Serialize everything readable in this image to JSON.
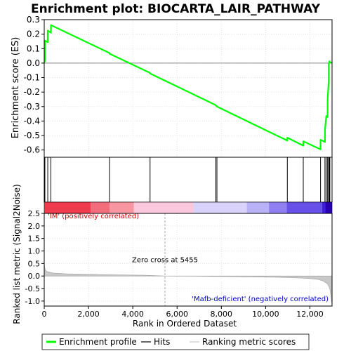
{
  "chart_data": {
    "title": "Enrichment plot: BIOCARTA_LAIR_PATHWAY",
    "panels": [
      {
        "type": "line",
        "name": "enrichment_profile",
        "ylabel": "Enrichment score (ES)",
        "xlim": [
          0,
          13000
        ],
        "ylim": [
          -0.65,
          0.3
        ],
        "yticks": [
          0.3,
          0.2,
          0.1,
          0.0,
          -0.1,
          -0.2,
          -0.3,
          -0.4,
          -0.5,
          -0.6
        ],
        "ytick_labels": [
          "0.3",
          "0.2",
          "0.1",
          "0.0",
          "-0.1",
          "-0.2",
          "-0.3",
          "-0.4",
          "-0.5",
          "-0.6"
        ],
        "grid": true,
        "color": "#00ff00",
        "x": [
          0,
          30,
          30,
          160,
          160,
          300,
          300,
          2950,
          2950,
          4780,
          4780,
          7750,
          7750,
          7800,
          7800,
          10980,
          10980,
          11700,
          11700,
          12480,
          12480,
          12680,
          12680,
          12740,
          12740,
          12800,
          12800,
          12850,
          12850,
          12880,
          12880,
          12900,
          12900,
          13000
        ],
        "y": [
          0.0,
          0.02,
          0.155,
          0.145,
          0.225,
          0.21,
          0.262,
          0.07,
          0.065,
          -0.068,
          -0.072,
          -0.29,
          -0.293,
          -0.297,
          -0.3,
          -0.535,
          -0.515,
          -0.57,
          -0.54,
          -0.595,
          -0.53,
          -0.545,
          -0.46,
          -0.365,
          -0.37,
          -0.372,
          -0.25,
          -0.125,
          -0.005,
          0.008,
          0.012,
          0.008,
          0.005,
          0.005
        ]
      },
      {
        "type": "hits",
        "name": "hits",
        "positions": [
          30,
          160,
          300,
          2950,
          4780,
          7750,
          7800,
          10980,
          11700,
          12480,
          12680,
          12740,
          12800,
          12850,
          12880,
          12900
        ]
      },
      {
        "type": "heatmap",
        "name": "ranked_list_colorbar",
        "xlim": [
          0,
          13000
        ],
        "segments": [
          {
            "from": 0,
            "to": 2100,
            "color": "#ef3b4d"
          },
          {
            "from": 2100,
            "to": 2950,
            "color": "#f36e7d"
          },
          {
            "from": 2950,
            "to": 4050,
            "color": "#f795a1"
          },
          {
            "from": 4050,
            "to": 6750,
            "color": "#fac8dc"
          },
          {
            "from": 6750,
            "to": 9150,
            "color": "#d9d2fb"
          },
          {
            "from": 9150,
            "to": 10150,
            "color": "#bab2f7"
          },
          {
            "from": 10150,
            "to": 10950,
            "color": "#8f7ff1"
          },
          {
            "from": 10950,
            "to": 12550,
            "color": "#6650e8"
          },
          {
            "from": 12550,
            "to": 12700,
            "color": "#3d1fd9"
          },
          {
            "from": 12700,
            "to": 13000,
            "color": "#2800b0"
          }
        ]
      },
      {
        "type": "area",
        "name": "ranked_list_metric",
        "ylabel": "Ranked list metric (Signal2Noise)",
        "xlabel": "Rank in Ordered Dataset",
        "xlim": [
          0,
          13000
        ],
        "ylim": [
          -1.2,
          2.5
        ],
        "yticks": [
          2.5,
          2.0,
          1.5,
          1.0,
          0.5,
          0.0,
          -0.5,
          -1.0
        ],
        "ytick_labels": [
          "2.5",
          "2.0",
          "1.5",
          "1.0",
          "0.5",
          "0.0",
          "-0.5",
          "-1.0"
        ],
        "xticks": [
          0,
          2000,
          4000,
          6000,
          8000,
          10000,
          12000
        ],
        "xtick_labels": [
          "0",
          "2,000",
          "4,000",
          "6,000",
          "8,000",
          "10,000",
          "12,000"
        ],
        "grid": true,
        "color": "#c8c8c8",
        "x": [
          0,
          20,
          60,
          150,
          400,
          1000,
          2000,
          3000,
          4500,
          5455,
          7000,
          9000,
          10500,
          11500,
          12000,
          12400,
          12600,
          12800,
          12900,
          12950,
          13000
        ],
        "y": [
          0.55,
          0.35,
          0.22,
          0.17,
          0.12,
          0.09,
          0.07,
          0.05,
          0.03,
          0.0,
          -0.01,
          -0.03,
          -0.05,
          -0.08,
          -0.1,
          -0.14,
          -0.2,
          -0.32,
          -0.5,
          -0.8,
          -1.15
        ],
        "zero_cross_label": "Zero cross at 5455",
        "zero_cross_x": 5455,
        "positive_label": "'IM' (positively correlated)",
        "negative_label": "'Mafb-deficient' (negatively correlated)",
        "positive_color": "#cc0000",
        "negative_color": "#0000cc"
      }
    ],
    "legend": {
      "placement": "bottom",
      "entries": [
        {
          "label": "Enrichment profile",
          "color": "#00ff00",
          "style": "thick-line"
        },
        {
          "label": "Hits",
          "color": "#000000",
          "style": "line"
        },
        {
          "label": "Ranking metric scores",
          "color": "#c8c8c8",
          "style": "line"
        }
      ]
    }
  }
}
